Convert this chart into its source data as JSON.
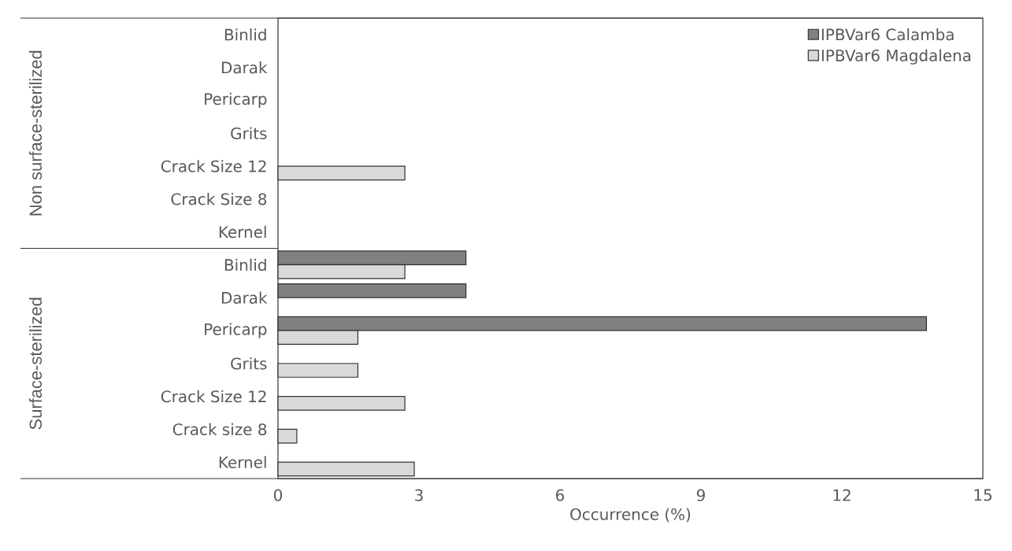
{
  "chart_data": {
    "type": "bar",
    "orientation": "horizontal",
    "xlabel": "Occurrence (%)",
    "categories": [
      "Binlid",
      "Darak",
      "Pericarp",
      "Grits",
      "Crack Size 12",
      "Crack Size 8",
      "Kernel",
      "Binlid",
      "Darak",
      "Pericarp",
      "Grits",
      "Crack Size 12",
      "Crack size 8",
      "Kernel"
    ],
    "series": [
      {
        "name": "IPBVar6 Calamba",
        "color": "#808080",
        "values": [
          null,
          null,
          null,
          null,
          null,
          null,
          null,
          4.0,
          4.0,
          13.8,
          null,
          null,
          null,
          null
        ]
      },
      {
        "name": "IPBVar6 Magdalena",
        "color": "#d9d9d9",
        "values": [
          null,
          null,
          null,
          null,
          2.7,
          null,
          null,
          2.7,
          null,
          1.7,
          1.7,
          2.7,
          0.4,
          2.9
        ]
      }
    ],
    "xlim": [
      0,
      15
    ],
    "xticks": [
      0,
      3,
      6,
      9,
      12,
      15
    ],
    "legend": "top right",
    "annotations": [
      "Non surface-sterilized",
      "Surface-sterilized"
    ]
  }
}
